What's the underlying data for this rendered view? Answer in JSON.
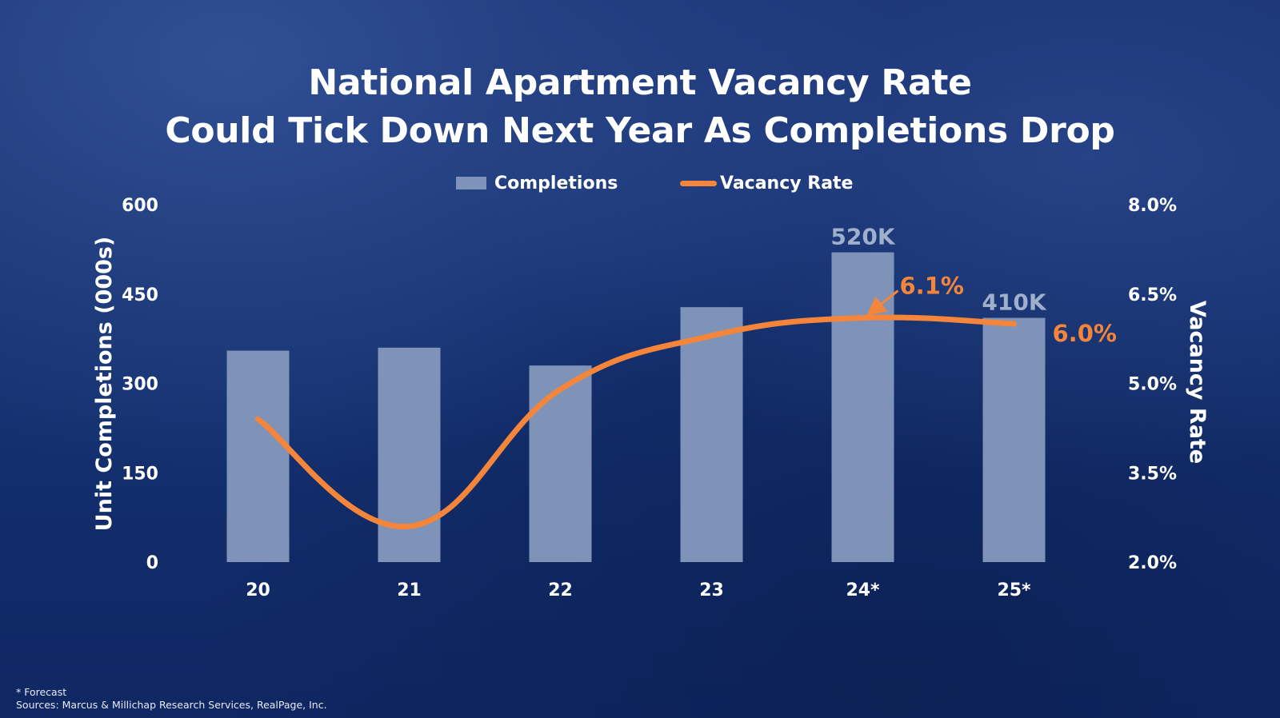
{
  "title": {
    "line1": "National Apartment Vacancy Rate",
    "line2": "Could Tick Down Next Year As Completions Drop"
  },
  "legend": {
    "completions": "Completions",
    "vacancy": "Vacancy Rate"
  },
  "footnotes": {
    "forecast": "* Forecast",
    "sources": "Sources: Marcus & Millichap Research Services, RealPage, Inc."
  },
  "colors": {
    "bar": "#7e93b7",
    "line": "#f4853a",
    "text": "#ffffff",
    "bar_label": "#9fb0cc"
  },
  "chart_data": {
    "type": "bar",
    "categories": [
      "20",
      "21",
      "22",
      "23",
      "24*",
      "25*"
    ],
    "series": [
      {
        "name": "Completions",
        "type": "bar",
        "axis": "left",
        "values": [
          355,
          360,
          330,
          428,
          520,
          410
        ],
        "data_labels": [
          null,
          null,
          null,
          null,
          "520K",
          "410K"
        ]
      },
      {
        "name": "Vacancy Rate",
        "type": "line",
        "axis": "right",
        "values": [
          4.4,
          2.6,
          4.9,
          5.8,
          6.1,
          6.0
        ],
        "data_labels": [
          null,
          null,
          null,
          null,
          "6.1%",
          "6.0%"
        ]
      }
    ],
    "ylabel": "Unit Completions (000s)",
    "y2label": "Vacancy Rate",
    "ylim": [
      0,
      600
    ],
    "y2lim": [
      2.0,
      8.0
    ],
    "yticks": [
      "0",
      "150",
      "300",
      "450",
      "600"
    ],
    "y2ticks": [
      "2.0%",
      "3.5%",
      "5.0%",
      "6.5%",
      "8.0%"
    ],
    "grid": false,
    "legend_position": "top"
  }
}
